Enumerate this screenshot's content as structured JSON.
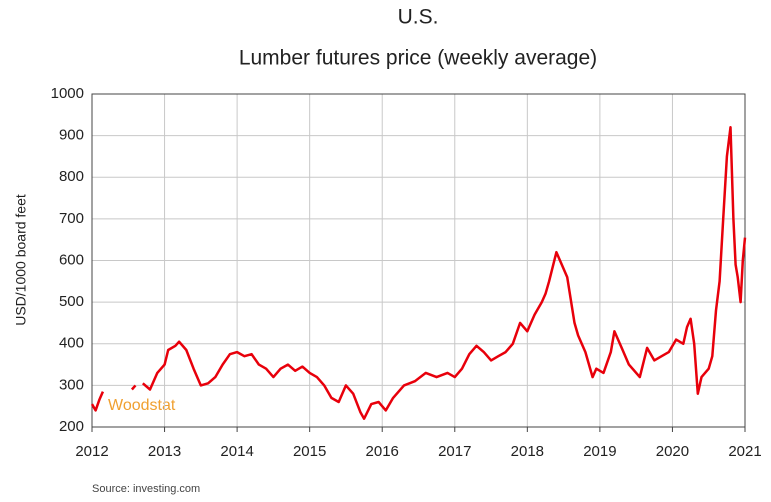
{
  "chart_data": {
    "type": "line",
    "title": "U.S.",
    "subtitle": "Lumber futures price (weekly average)",
    "ylabel": "USD/1000 board feet",
    "annotation": "Woodstat",
    "source": "Source: investing.com",
    "xlim": [
      2012,
      2021
    ],
    "xticks": [
      2012,
      2013,
      2014,
      2015,
      2016,
      2017,
      2018,
      2019,
      2020,
      2021
    ],
    "ylim": [
      200,
      1000
    ],
    "yticks": [
      200,
      300,
      400,
      500,
      600,
      700,
      800,
      900,
      1000
    ],
    "grid": true,
    "x": [
      2012.0,
      2012.05,
      2012.1,
      2012.15,
      2012.3,
      2012.4,
      2012.45,
      2012.55,
      2012.6,
      2012.65,
      2012.7,
      2012.8,
      2012.9,
      2013.0,
      2013.05,
      2013.15,
      2013.2,
      2013.3,
      2013.4,
      2013.5,
      2013.6,
      2013.7,
      2013.8,
      2013.9,
      2014.0,
      2014.1,
      2014.2,
      2014.3,
      2014.4,
      2014.5,
      2014.6,
      2014.7,
      2014.8,
      2014.9,
      2015.0,
      2015.1,
      2015.2,
      2015.3,
      2015.4,
      2015.5,
      2015.6,
      2015.7,
      2015.75,
      2015.85,
      2015.95,
      2016.05,
      2016.15,
      2016.3,
      2016.45,
      2016.6,
      2016.75,
      2016.9,
      2017.0,
      2017.1,
      2017.2,
      2017.3,
      2017.4,
      2017.5,
      2017.6,
      2017.7,
      2017.8,
      2017.9,
      2018.0,
      2018.1,
      2018.2,
      2018.25,
      2018.3,
      2018.4,
      2018.45,
      2018.55,
      2018.65,
      2018.7,
      2018.8,
      2018.9,
      2018.95,
      2019.05,
      2019.15,
      2019.2,
      2019.3,
      2019.4,
      2019.5,
      2019.55,
      2019.65,
      2019.75,
      2019.85,
      2019.95,
      2020.05,
      2020.15,
      2020.2,
      2020.25,
      2020.3,
      2020.35,
      2020.4,
      2020.5,
      2020.55,
      2020.6,
      2020.65,
      2020.7,
      2020.75,
      2020.8,
      2020.84,
      2020.87,
      2020.9,
      2020.94,
      2020.97,
      2021.0
    ],
    "series": [
      {
        "name": "Lumber futures price",
        "color": "#e8000b",
        "values": [
          255,
          240,
          265,
          285,
          null,
          295,
          null,
          290,
          300,
          null,
          305,
          290,
          330,
          350,
          385,
          395,
          405,
          385,
          340,
          300,
          305,
          320,
          350,
          375,
          380,
          370,
          375,
          350,
          340,
          320,
          340,
          350,
          335,
          345,
          330,
          320,
          300,
          270,
          260,
          300,
          280,
          235,
          220,
          255,
          260,
          240,
          270,
          300,
          310,
          330,
          320,
          330,
          320,
          340,
          375,
          395,
          380,
          360,
          370,
          380,
          400,
          450,
          430,
          470,
          500,
          520,
          550,
          620,
          600,
          560,
          450,
          420,
          380,
          320,
          340,
          330,
          380,
          430,
          390,
          350,
          330,
          320,
          390,
          360,
          370,
          380,
          410,
          400,
          440,
          460,
          400,
          280,
          320,
          340,
          370,
          480,
          550,
          700,
          850,
          920,
          700,
          590,
          560,
          500,
          600,
          655
        ]
      }
    ]
  }
}
